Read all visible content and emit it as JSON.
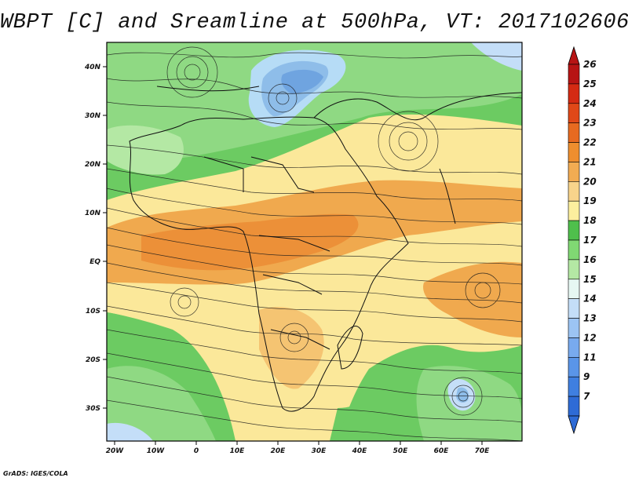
{
  "title": "WBPT [C] and Sreamline at 500hPa, VT: 2017102606",
  "credit": "GrADS: IGES/COLA",
  "map": {
    "longitude_ticks": [
      "20W",
      "10W",
      "0",
      "10E",
      "20E",
      "30E",
      "40E",
      "50E",
      "60E",
      "70E"
    ],
    "latitude_ticks": [
      "40N",
      "30N",
      "20N",
      "10N",
      "EQ",
      "10S",
      "20S",
      "30S"
    ],
    "layers": [
      "wet-bulb potential temperature shading",
      "500hPa streamlines",
      "coastlines and country borders"
    ]
  },
  "colorbar": {
    "levels": [
      "7",
      "9",
      "11",
      "12",
      "13",
      "14",
      "15",
      "16",
      "17",
      "18",
      "19",
      "20",
      "21",
      "22",
      "23",
      "24",
      "25",
      "26"
    ],
    "colors": [
      "#2e6bd6",
      "#3f7fe0",
      "#5a95e8",
      "#78aaee",
      "#9cc4f3",
      "#c4def8",
      "#e6f7f2",
      "#b4e8a4",
      "#80d873",
      "#4fbf4c",
      "#fcef9e",
      "#f8d48b",
      "#f2ac52",
      "#ee8e2e",
      "#e76a20",
      "#e04818",
      "#d42a13",
      "#b71414"
    ]
  }
}
